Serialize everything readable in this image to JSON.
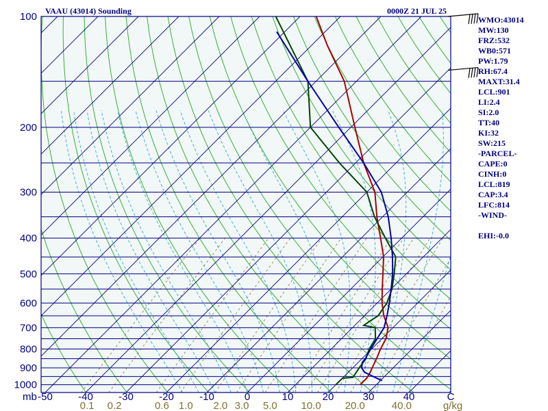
{
  "header": {
    "station": "VAAU (43014) Sounding",
    "time": "0000Z 21 JUL 25"
  },
  "colors": {
    "frame": "#000080",
    "background": "#f2f7f7",
    "isobar": "#000080",
    "isotherm": "#000080",
    "dry_adiabat": "#22aa22",
    "moist_adiabat": "#33aacc",
    "mixing_ratio": "#807030",
    "temperature": "#aa0000",
    "dewpoint": "#004400",
    "parcel": "#0000aa",
    "wind_barb": "#000000"
  },
  "chart_data": {
    "type": "line",
    "title": "VAAU (43014) Sounding",
    "subtitle": "0000Z 21 JUL 25",
    "xlabel": "",
    "ylabel": "mb",
    "x_unit": "C",
    "mixing_ratio_unit": "g/kg",
    "y_scale": "log",
    "ylim": [
      1050,
      100
    ],
    "skew": true,
    "grid": true,
    "pressure_ticks": [
      "100",
      "200",
      "300",
      "400",
      "500",
      "600",
      "700",
      "800",
      "900",
      "1000"
    ],
    "isobars": [
      100,
      150,
      200,
      250,
      300,
      350,
      400,
      450,
      500,
      550,
      600,
      650,
      700,
      750,
      800,
      850,
      900,
      950,
      1000,
      1050
    ],
    "temperature_ticks": [
      "-50",
      "-40",
      "-30",
      "-20",
      "-10",
      "0",
      "10",
      "20",
      "30",
      "40",
      "C"
    ],
    "mixing_ratio_ticks": [
      "0.1",
      "0.2",
      "0.6",
      "1.0",
      "2.0",
      "3.0",
      "5.0",
      "10.0",
      "20.0",
      "40.0",
      "g/kg"
    ],
    "series": [
      {
        "key": "temperature",
        "points": [
          [
            1000,
            26.0
          ],
          [
            960,
            26.0
          ],
          [
            925,
            25.4
          ],
          [
            900,
            24.8
          ],
          [
            850,
            23.6
          ],
          [
            800,
            22.2
          ],
          [
            750,
            21.0
          ],
          [
            700,
            18.8
          ],
          [
            650,
            14.8
          ],
          [
            600,
            11.2
          ],
          [
            550,
            7.8
          ],
          [
            500,
            4.2
          ],
          [
            450,
            0.2
          ],
          [
            400,
            -5.2
          ],
          [
            350,
            -11.4
          ],
          [
            300,
            -18.0
          ],
          [
            250,
            -28.0
          ],
          [
            200,
            -39.0
          ],
          [
            150,
            -53.0
          ],
          [
            120,
            -66.0
          ],
          [
            100,
            -76.0
          ]
        ]
      },
      {
        "key": "dewpoint",
        "points": [
          [
            1000,
            20.0
          ],
          [
            960,
            20.0
          ],
          [
            955,
            22.4
          ],
          [
            900,
            21.6
          ],
          [
            850,
            21.0
          ],
          [
            800,
            19.4
          ],
          [
            750,
            18.4
          ],
          [
            700,
            15.6
          ],
          [
            690,
            12.2
          ],
          [
            675,
            12.6
          ],
          [
            650,
            13.4
          ],
          [
            600,
            12.4
          ],
          [
            550,
            10.2
          ],
          [
            500,
            7.0
          ],
          [
            450,
            3.2
          ],
          [
            400,
            -4.0
          ],
          [
            350,
            -12.0
          ],
          [
            300,
            -20.0
          ],
          [
            250,
            -34.0
          ],
          [
            200,
            -50.0
          ],
          [
            150,
            -62.0
          ],
          [
            100,
            -86.0
          ]
        ]
      },
      {
        "key": "parcel",
        "points": [
          [
            975,
            30.4
          ],
          [
            950,
            27.2
          ],
          [
            925,
            24.0
          ],
          [
            900,
            22.2
          ],
          [
            870,
            21.0
          ],
          [
            850,
            20.8
          ],
          [
            800,
            19.8
          ],
          [
            750,
            18.8
          ],
          [
            700,
            17.8
          ],
          [
            650,
            15.6
          ],
          [
            600,
            13.0
          ],
          [
            550,
            10.0
          ],
          [
            500,
            6.6
          ],
          [
            450,
            2.4
          ],
          [
            400,
            -2.6
          ],
          [
            350,
            -8.6
          ],
          [
            300,
            -16.4
          ],
          [
            250,
            -28.0
          ],
          [
            200,
            -43.0
          ],
          [
            150,
            -62.0
          ],
          [
            110,
            -82.0
          ]
        ]
      }
    ],
    "wind_barbs_on_axis": 2
  },
  "indices": [
    "WMO:43014",
    "MW:130",
    "FRZ:532",
    "WB0:571",
    "PW:1.79",
    "RH:67.4",
    "MAXT:31.4",
    "LCL:901",
    "LI:2.4",
    "SI:2.0",
    "TT:40",
    "KI:32",
    "SW:215",
    "-PARCEL-",
    "CAPE:0",
    "CINH:0",
    "LCL:819",
    "CAP:3.4",
    "LFC:814",
    "-WIND-",
    "",
    "EHI:-0.0"
  ]
}
